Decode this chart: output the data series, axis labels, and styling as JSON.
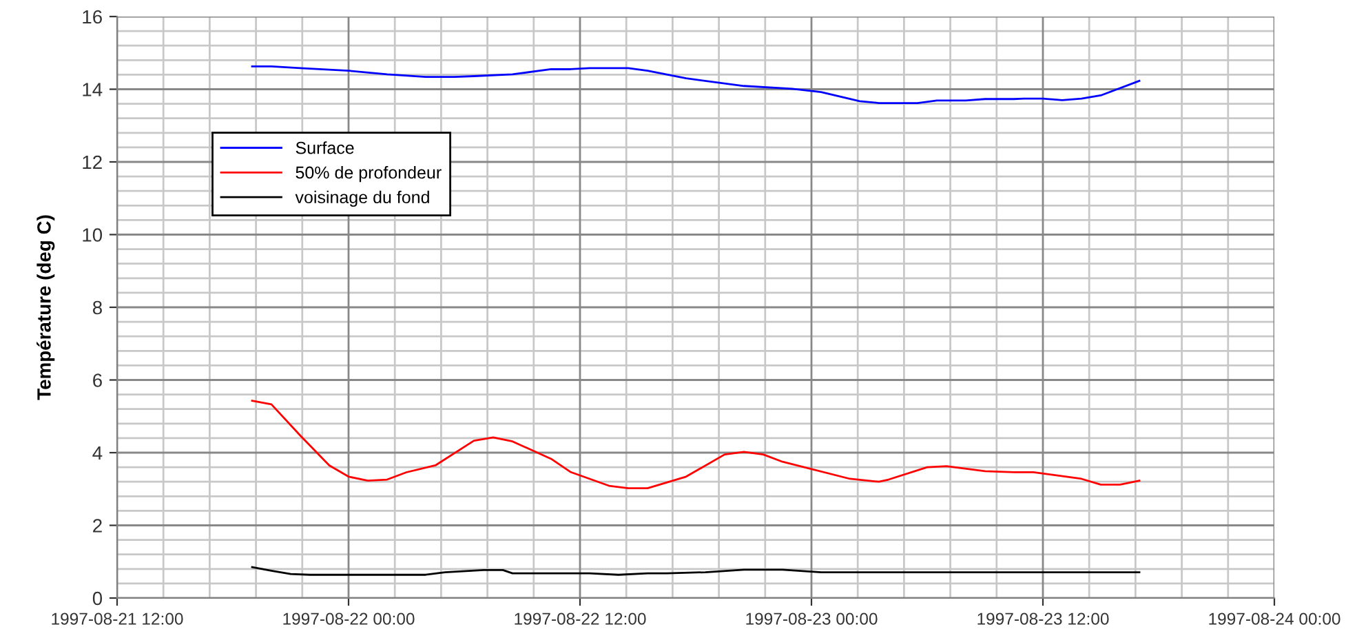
{
  "chart_data": {
    "type": "line",
    "ylabel": "Température (deg C)",
    "xlim": [
      "1997-08-21T12:00",
      "1997-08-24T00:00"
    ],
    "xticks": [
      {
        "value": "1997-08-21T12:00",
        "label": "1997-08-21 12:00"
      },
      {
        "value": "1997-08-22T00:00",
        "label": "1997-08-22 00:00"
      },
      {
        "value": "1997-08-22T12:00",
        "label": "1997-08-22 12:00"
      },
      {
        "value": "1997-08-23T00:00",
        "label": "1997-08-23 00:00"
      },
      {
        "value": "1997-08-23T12:00",
        "label": "1997-08-23 12:00"
      },
      {
        "value": "1997-08-24T00:00",
        "label": "1997-08-24 00:00"
      }
    ],
    "ylim": [
      0,
      16
    ],
    "yticks": [
      0,
      2,
      4,
      6,
      8,
      10,
      12,
      14,
      16
    ],
    "grid": true,
    "legend": "top left",
    "marker": "none",
    "line_style": "solid",
    "series": [
      {
        "name": "Surface",
        "color": "#0000ff",
        "x": [
          "1997-08-21T19:00",
          "1997-08-21T20:00",
          "1997-08-21T21:30",
          "1997-08-22T00:00",
          "1997-08-22T02:00",
          "1997-08-22T04:00",
          "1997-08-22T05:30",
          "1997-08-22T06:30",
          "1997-08-22T08:30",
          "1997-08-22T10:30",
          "1997-08-22T11:30",
          "1997-08-22T12:30",
          "1997-08-22T14:30",
          "1997-08-22T15:30",
          "1997-08-22T17:30",
          "1997-08-22T20:30",
          "1997-08-22T23:00",
          "1997-08-23T00:30",
          "1997-08-23T02:30",
          "1997-08-23T03:30",
          "1997-08-23T05:30",
          "1997-08-23T06:30",
          "1997-08-23T08:00",
          "1997-08-23T09:00",
          "1997-08-23T10:30",
          "1997-08-23T11:00",
          "1997-08-23T12:00",
          "1997-08-23T13:00",
          "1997-08-23T14:00",
          "1997-08-23T15:00",
          "1997-08-23T17:00"
        ],
        "values": [
          14.63,
          14.63,
          14.58,
          14.51,
          14.41,
          14.34,
          14.34,
          14.36,
          14.41,
          14.55,
          14.55,
          14.58,
          14.58,
          14.51,
          14.3,
          14.09,
          14.01,
          13.92,
          13.67,
          13.62,
          13.62,
          13.69,
          13.69,
          13.73,
          13.73,
          13.74,
          13.74,
          13.7,
          13.74,
          13.83,
          14.23
        ]
      },
      {
        "name": "50% de profondeur",
        "color": "#ff0000",
        "x": [
          "1997-08-21T19:00",
          "1997-08-21T20:00",
          "1997-08-21T21:30",
          "1997-08-21T23:00",
          "1997-08-22T00:00",
          "1997-08-22T01:00",
          "1997-08-22T02:00",
          "1997-08-22T03:00",
          "1997-08-22T04:30",
          "1997-08-22T06:30",
          "1997-08-22T07:30",
          "1997-08-22T08:30",
          "1997-08-22T10:30",
          "1997-08-22T11:30",
          "1997-08-22T13:30",
          "1997-08-22T14:30",
          "1997-08-22T15:30",
          "1997-08-22T17:30",
          "1997-08-22T19:30",
          "1997-08-22T20:30",
          "1997-08-22T21:30",
          "1997-08-22T22:30",
          "1997-08-23T02:00",
          "1997-08-23T03:30",
          "1997-08-23T04:00",
          "1997-08-23T06:00",
          "1997-08-23T07:00",
          "1997-08-23T09:00",
          "1997-08-23T10:30",
          "1997-08-23T11:30",
          "1997-08-23T12:30",
          "1997-08-23T14:00",
          "1997-08-23T15:00",
          "1997-08-23T16:00",
          "1997-08-23T17:00"
        ],
        "values": [
          5.43,
          5.33,
          4.47,
          3.65,
          3.34,
          3.23,
          3.26,
          3.46,
          3.65,
          4.33,
          4.42,
          4.31,
          3.83,
          3.47,
          3.09,
          3.02,
          3.02,
          3.34,
          3.95,
          4.02,
          3.95,
          3.75,
          3.28,
          3.2,
          3.26,
          3.6,
          3.63,
          3.49,
          3.46,
          3.46,
          3.39,
          3.28,
          3.12,
          3.12,
          3.23
        ]
      },
      {
        "name": "voisinage du fond",
        "color": "#000000",
        "x": [
          "1997-08-21T19:00",
          "1997-08-21T20:00",
          "1997-08-21T21:00",
          "1997-08-21T22:00",
          "1997-08-22T04:00",
          "1997-08-22T05:00",
          "1997-08-22T07:00",
          "1997-08-22T08:00",
          "1997-08-22T08:30",
          "1997-08-22T12:30",
          "1997-08-22T14:00",
          "1997-08-22T15:30",
          "1997-08-22T16:30",
          "1997-08-22T18:30",
          "1997-08-22T20:30",
          "1997-08-22T22:30",
          "1997-08-23T00:30",
          "1997-08-23T17:00"
        ],
        "values": [
          0.85,
          0.75,
          0.66,
          0.64,
          0.64,
          0.71,
          0.77,
          0.77,
          0.68,
          0.68,
          0.64,
          0.68,
          0.68,
          0.71,
          0.78,
          0.78,
          0.71,
          0.71
        ]
      }
    ]
  }
}
